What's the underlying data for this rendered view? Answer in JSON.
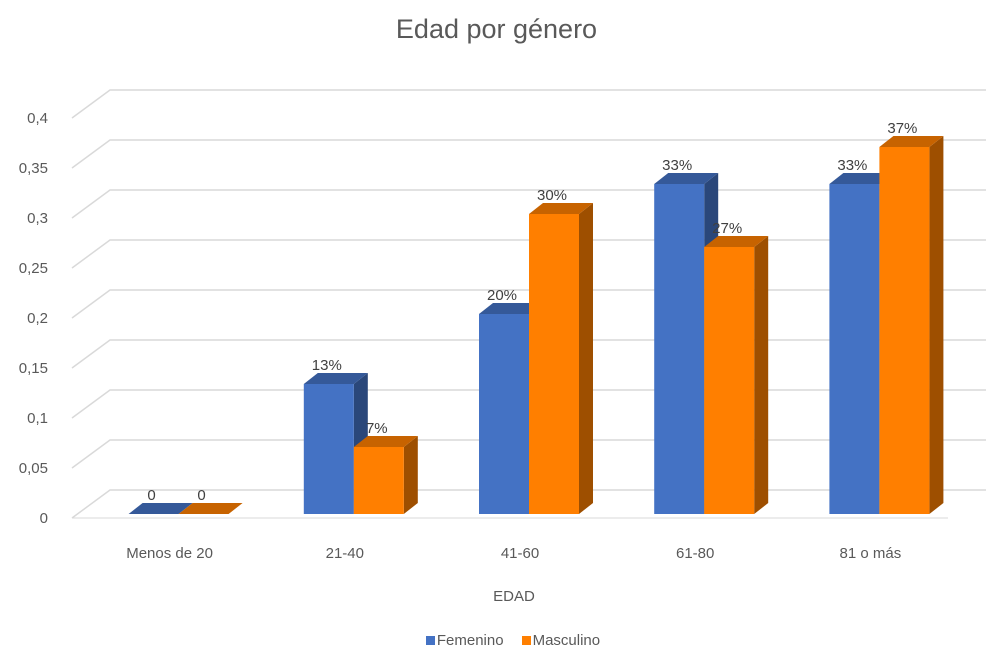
{
  "chart_data": {
    "type": "bar",
    "title": "Edad por género",
    "xlabel": "EDAD",
    "ylabel": "",
    "categories": [
      "Menos de 20",
      "21-40",
      "41-60",
      "61-80",
      "81 o más"
    ],
    "series": [
      {
        "name": "Femenino",
        "color": "#4472C4",
        "values": [
          0,
          0.13,
          0.2,
          0.33,
          0.33
        ],
        "labels": [
          "0",
          "13%",
          "20%",
          "33%",
          "33%"
        ]
      },
      {
        "name": "Masculino",
        "color": "#FF7F00",
        "values": [
          0,
          0.067,
          0.3,
          0.267,
          0.367
        ],
        "labels": [
          "0",
          "7%",
          "30%",
          "27%",
          "37%"
        ]
      }
    ],
    "ylim": [
      0,
      0.4
    ],
    "yticks": [
      "0",
      "0,05",
      "0,1",
      "0,15",
      "0,2",
      "0,25",
      "0,3",
      "0,35",
      "0,4"
    ],
    "grid": true,
    "legend_position": "bottom",
    "style": "3d-clustered-column"
  }
}
